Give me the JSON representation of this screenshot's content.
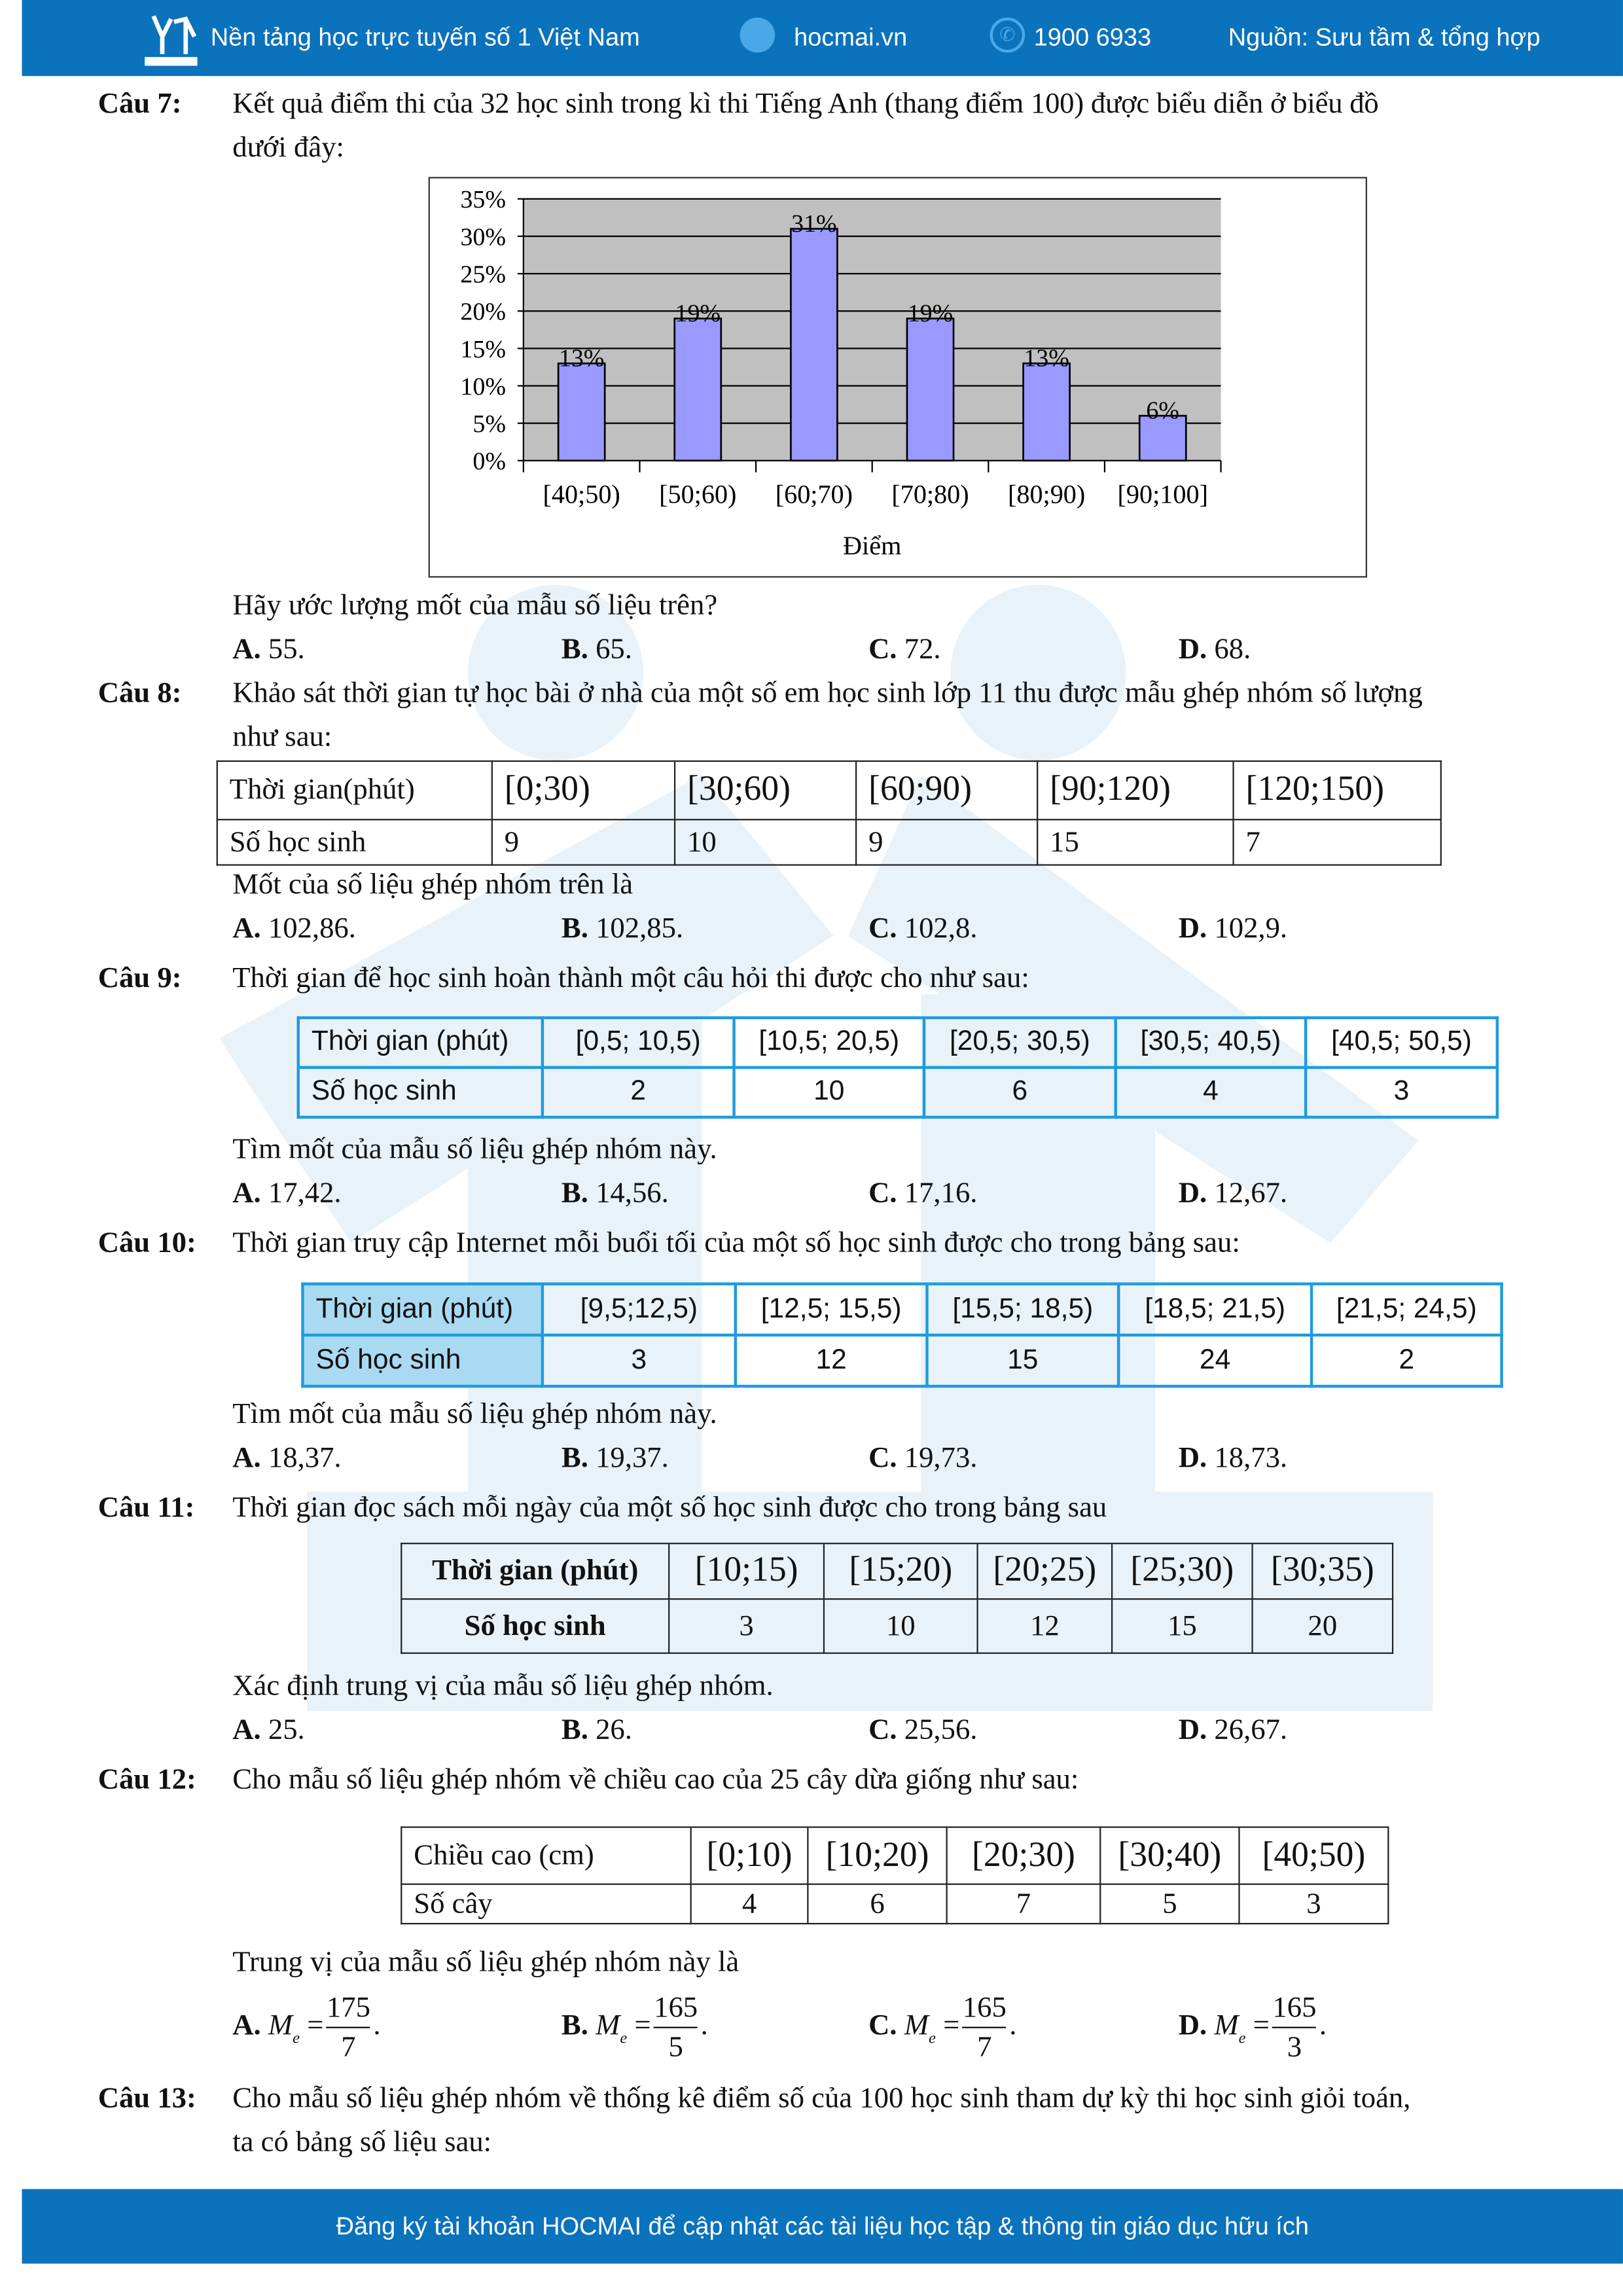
{
  "header": {
    "tagline": "Nền tảng học trực tuyến số 1 Việt Nam",
    "website": "hocmai.vn",
    "phone": "1900 6933",
    "source": "Nguồn: Sưu tầm & tổng hợp",
    "logo_text": "HOCMAI"
  },
  "footer": {
    "text": "Đăng ký tài khoản HOCMAI để cập nhật các tài liệu học tập & thông tin giáo dục hữu ích"
  },
  "colors": {
    "brand": "#0b72bc",
    "bar": "#9999ff",
    "plot_bg": "#c0c0c0",
    "table_blue": "#1e9be0",
    "table_fill": "#a9daf2"
  },
  "q7": {
    "label": "Câu 7:",
    "line1": "Kết quả điểm thi của 32 học sinh trong kì thi Tiếng Anh (thang điểm 100) được biểu diễn ở biểu đồ",
    "line2": "dưới đây:",
    "prompt": "Hãy ước lượng mốt của mẫu số liệu trên?",
    "options": [
      {
        "k": "A.",
        "v": "55."
      },
      {
        "k": "B.",
        "v": "65."
      },
      {
        "k": "C.",
        "v": "72."
      },
      {
        "k": "D.",
        "v": "68."
      }
    ]
  },
  "chart_data": {
    "type": "bar",
    "categories": [
      "[40;50)",
      "[50;60)",
      "[60;70)",
      "[70;80)",
      "[80;90)",
      "[90;100]"
    ],
    "values": [
      13,
      19,
      31,
      19,
      13,
      6
    ],
    "data_labels": [
      "13%",
      "19%",
      "31%",
      "19%",
      "13%",
      "6%"
    ],
    "xlabel": "Điểm",
    "ylabel": "",
    "ylim": [
      0,
      35
    ],
    "yticks": [
      "0%",
      "5%",
      "10%",
      "15%",
      "20%",
      "25%",
      "30%",
      "35%"
    ],
    "grid": true
  },
  "q8": {
    "label": "Câu 8:",
    "line1": "Khảo sát thời gian tự học bài ở nhà của một số em học sinh lớp 11 thu được mẫu ghép nhóm số lượng",
    "line2": "như sau:",
    "table": {
      "headers": [
        "Thời gian(phút)",
        "[0;30)",
        "[30;60)",
        "[60;90)",
        "[90;120)",
        "[120;150)"
      ],
      "row": [
        "Số học sinh",
        "9",
        "10",
        "9",
        "15",
        "7"
      ]
    },
    "prompt": "Mốt của số liệu ghép nhóm trên là",
    "options": [
      {
        "k": "A.",
        "v": "102,86."
      },
      {
        "k": "B.",
        "v": "102,85."
      },
      {
        "k": "C.",
        "v": "102,8."
      },
      {
        "k": "D.",
        "v": "102,9."
      }
    ]
  },
  "q9": {
    "label": "Câu 9:",
    "line1": "Thời gian để học sinh hoàn thành một câu hỏi thi được cho như sau:",
    "table": {
      "headers": [
        "Thời gian (phút)",
        "[0,5; 10,5)",
        "[10,5; 20,5)",
        "[20,5; 30,5)",
        "[30,5; 40,5)",
        "[40,5; 50,5)"
      ],
      "row": [
        "Số học sinh",
        "2",
        "10",
        "6",
        "4",
        "3"
      ]
    },
    "prompt": "Tìm mốt của mẫu số liệu ghép nhóm này.",
    "options": [
      {
        "k": "A.",
        "v": "17,42."
      },
      {
        "k": "B.",
        "v": "14,56."
      },
      {
        "k": "C.",
        "v": "17,16."
      },
      {
        "k": "D.",
        "v": "12,67."
      }
    ]
  },
  "q10": {
    "label": "Câu 10:",
    "line1": "Thời gian truy cập Internet mỗi buổi tối của một số học sinh được cho trong bảng sau:",
    "table": {
      "headers": [
        "Thời gian (phút)",
        "[9,5;12,5)",
        "[12,5; 15,5)",
        "[15,5; 18,5)",
        "[18,5; 21,5)",
        "[21,5; 24,5)"
      ],
      "row": [
        "Số học sinh",
        "3",
        "12",
        "15",
        "24",
        "2"
      ]
    },
    "prompt": "Tìm mốt của mẫu số liệu ghép nhóm này.",
    "options": [
      {
        "k": "A.",
        "v": "18,37."
      },
      {
        "k": "B.",
        "v": "19,37."
      },
      {
        "k": "C.",
        "v": "19,73."
      },
      {
        "k": "D.",
        "v": "18,73."
      }
    ]
  },
  "q11": {
    "label": "Câu 11:",
    "line1": "Thời gian đọc sách mỗi ngày của một số học sinh được cho trong bảng sau",
    "table": {
      "headers": [
        "Thời gian (phút)",
        "[10;15)",
        "[15;20)",
        "[20;25)",
        "[25;30)",
        "[30;35)"
      ],
      "row": [
        "Số học sinh",
        "3",
        "10",
        "12",
        "15",
        "20"
      ]
    },
    "prompt": "Xác định trung vị của mẫu số liệu ghép nhóm.",
    "options": [
      {
        "k": "A.",
        "v": "25."
      },
      {
        "k": "B.",
        "v": "26."
      },
      {
        "k": "C.",
        "v": "25,56."
      },
      {
        "k": "D.",
        "v": "26,67."
      }
    ]
  },
  "q12": {
    "label": "Câu 12:",
    "line1": "Cho mẫu số liệu ghép nhóm về chiều cao của 25 cây dừa giống như sau:",
    "table": {
      "headers": [
        "Chiều cao (cm)",
        "[0;10)",
        "[10;20)",
        "[20;30)",
        "[30;40)",
        "[40;50)"
      ],
      "row": [
        "Số cây",
        "4",
        "6",
        "7",
        "5",
        "3"
      ]
    },
    "prompt": "Trung vị của mẫu số liệu ghép nhóm này là",
    "options": [
      {
        "k": "A.",
        "m": "M",
        "s": "e",
        "eq": "=",
        "num": "175",
        "den": "7",
        "end": "."
      },
      {
        "k": "B.",
        "m": "M",
        "s": "e",
        "eq": "=",
        "num": "165",
        "den": "5",
        "end": "."
      },
      {
        "k": "C.",
        "m": "M",
        "s": "e",
        "eq": "=",
        "num": "165",
        "den": "7",
        "end": "."
      },
      {
        "k": "D.",
        "m": "M",
        "s": "e",
        "eq": "=",
        "num": "165",
        "den": "3",
        "end": "."
      }
    ]
  },
  "q13": {
    "label": "Câu 13:",
    "line1": "Cho mẫu số liệu ghép nhóm về thống kê điểm số của 100 học sinh tham dự kỳ thi học sinh giỏi toán,",
    "line2": "ta có bảng số liệu sau:"
  }
}
